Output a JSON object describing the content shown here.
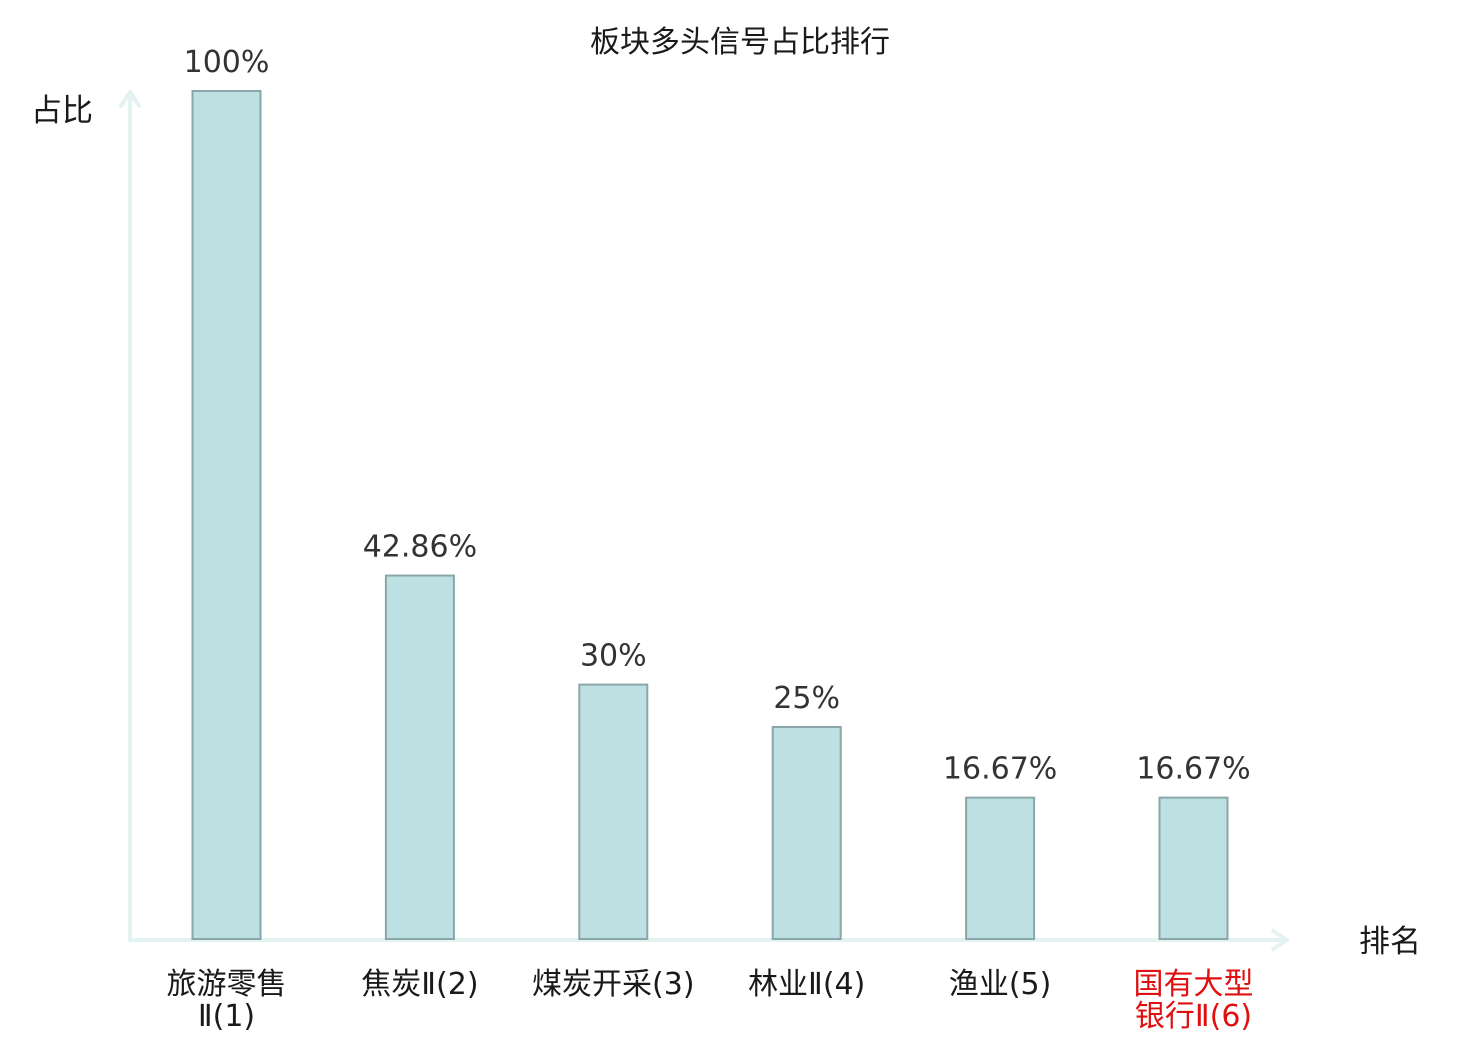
{
  "chart_data": {
    "type": "bar",
    "title": "板块多头信号占比排行",
    "ylabel": "占比",
    "xlabel": "排名",
    "categories": [
      [
        "旅游零售",
        "Ⅱ(1)"
      ],
      [
        "焦炭Ⅱ(2)"
      ],
      [
        "煤炭开采(3)"
      ],
      [
        "林业Ⅱ(4)"
      ],
      [
        "渔业(5)"
      ],
      [
        "国有大型",
        "银行Ⅱ(6)"
      ]
    ],
    "values": [
      100,
      42.86,
      30,
      25,
      16.67,
      16.67
    ],
    "value_labels": [
      "100%",
      "42.86%",
      "30%",
      "25%",
      "16.67%",
      "16.67%"
    ],
    "ylim": [
      0,
      100
    ],
    "grid": false,
    "highlight_index": 5,
    "colors": {
      "bar_fill": "#bde0e3",
      "bar_stroke": "#8aa6a8",
      "axis": "#e2f3f1",
      "highlight_label": "#e01010"
    }
  }
}
